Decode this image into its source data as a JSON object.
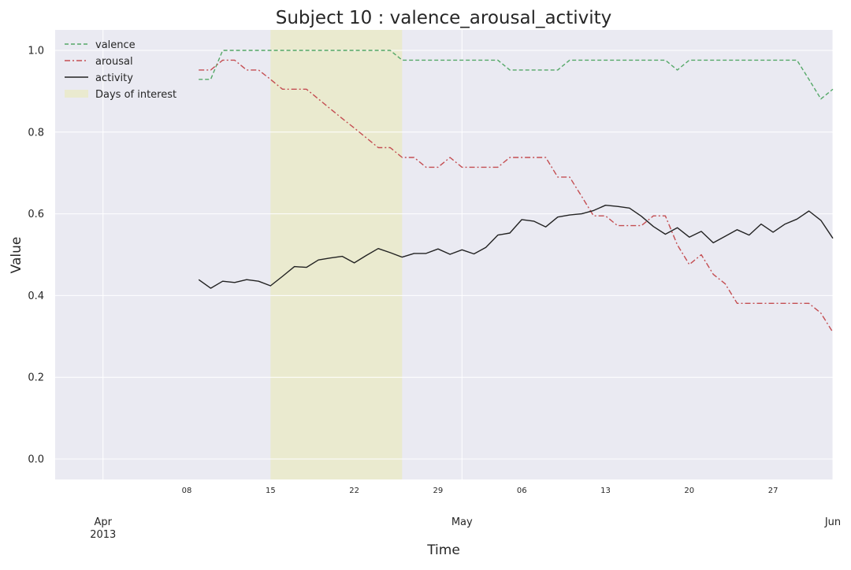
{
  "chart_data": {
    "type": "line",
    "title": "Subject 10 : valence_arousal_activity",
    "xlabel": "Time",
    "ylabel": "Value",
    "x_range": [
      "2013-03-28",
      "2013-06-01"
    ],
    "ylim": [
      -0.05,
      1.05
    ],
    "grid": true,
    "legend_position": "top-left",
    "y_ticks": [
      0.0,
      0.2,
      0.4,
      0.6,
      0.8,
      1.0
    ],
    "y_tick_labels": [
      "0.0",
      "0.2",
      "0.4",
      "0.6",
      "0.8",
      "1.0"
    ],
    "major_x_ticks": [
      {
        "date": "2013-04-01",
        "label": "Apr",
        "sublabel": "2013"
      },
      {
        "date": "2013-05-01",
        "label": "May",
        "sublabel": ""
      },
      {
        "date": "2013-06-01",
        "label": "Jun",
        "sublabel": ""
      }
    ],
    "minor_x_ticks": [
      {
        "date": "2013-04-08",
        "label": "08"
      },
      {
        "date": "2013-04-15",
        "label": "15"
      },
      {
        "date": "2013-04-22",
        "label": "22"
      },
      {
        "date": "2013-04-29",
        "label": "29"
      },
      {
        "date": "2013-05-06",
        "label": "06"
      },
      {
        "date": "2013-05-13",
        "label": "13"
      },
      {
        "date": "2013-05-20",
        "label": "20"
      },
      {
        "date": "2013-05-27",
        "label": "27"
      }
    ],
    "highlight": {
      "label": "Days of interest",
      "start": "2013-04-15",
      "end": "2013-04-26",
      "color": "#eaeacf"
    },
    "dates": [
      "2013-04-09",
      "2013-04-10",
      "2013-04-11",
      "2013-04-12",
      "2013-04-13",
      "2013-04-14",
      "2013-04-15",
      "2013-04-16",
      "2013-04-17",
      "2013-04-18",
      "2013-04-19",
      "2013-04-20",
      "2013-04-21",
      "2013-04-22",
      "2013-04-23",
      "2013-04-24",
      "2013-04-25",
      "2013-04-26",
      "2013-04-27",
      "2013-04-28",
      "2013-04-29",
      "2013-04-30",
      "2013-05-01",
      "2013-05-02",
      "2013-05-03",
      "2013-05-04",
      "2013-05-05",
      "2013-05-06",
      "2013-05-07",
      "2013-05-08",
      "2013-05-09",
      "2013-05-10",
      "2013-05-11",
      "2013-05-12",
      "2013-05-13",
      "2013-05-14",
      "2013-05-15",
      "2013-05-16",
      "2013-05-17",
      "2013-05-18",
      "2013-05-19",
      "2013-05-20",
      "2013-05-21",
      "2013-05-22",
      "2013-05-23",
      "2013-05-24",
      "2013-05-25",
      "2013-05-26",
      "2013-05-27",
      "2013-05-28",
      "2013-05-29",
      "2013-05-30",
      "2013-05-31",
      "2013-06-01"
    ],
    "series": [
      {
        "name": "valence",
        "color": "#55a868",
        "dash": "5,3",
        "values": [
          0.929,
          0.929,
          1.0,
          1.0,
          1.0,
          1.0,
          1.0,
          1.0,
          1.0,
          1.0,
          1.0,
          1.0,
          1.0,
          1.0,
          1.0,
          1.0,
          1.0,
          0.976,
          0.976,
          0.976,
          0.976,
          0.976,
          0.976,
          0.976,
          0.976,
          0.976,
          0.952,
          0.952,
          0.952,
          0.952,
          0.952,
          0.976,
          0.976,
          0.976,
          0.976,
          0.976,
          0.976,
          0.976,
          0.976,
          0.976,
          0.952,
          0.976,
          0.976,
          0.976,
          0.976,
          0.976,
          0.976,
          0.976,
          0.976,
          0.976,
          0.976,
          0.929,
          0.881,
          0.905
        ]
      },
      {
        "name": "arousal",
        "color": "#c44e52",
        "dash": "7,3,2,3",
        "values": [
          0.952,
          0.952,
          0.976,
          0.976,
          0.952,
          0.952,
          0.929,
          0.905,
          0.905,
          0.905,
          0.881,
          0.857,
          0.833,
          0.81,
          0.786,
          0.762,
          0.762,
          0.738,
          0.738,
          0.714,
          0.714,
          0.738,
          0.714,
          0.714,
          0.714,
          0.714,
          0.738,
          0.738,
          0.738,
          0.738,
          0.69,
          0.69,
          0.643,
          0.595,
          0.595,
          0.571,
          0.571,
          0.571,
          0.595,
          0.595,
          0.524,
          0.476,
          0.5,
          0.452,
          0.429,
          0.381,
          0.381,
          0.381,
          0.381,
          0.381,
          0.381,
          0.381,
          0.357,
          0.31
        ]
      },
      {
        "name": "activity",
        "color": "#222222",
        "dash": "",
        "values": [
          0.439,
          0.418,
          0.435,
          0.432,
          0.439,
          0.435,
          0.424,
          0.447,
          0.471,
          0.469,
          0.487,
          0.492,
          0.496,
          0.48,
          0.498,
          0.515,
          0.505,
          0.494,
          0.503,
          0.503,
          0.514,
          0.501,
          0.512,
          0.502,
          0.518,
          0.548,
          0.553,
          0.586,
          0.582,
          0.568,
          0.592,
          0.597,
          0.6,
          0.608,
          0.621,
          0.618,
          0.614,
          0.594,
          0.569,
          0.55,
          0.566,
          0.543,
          0.557,
          0.529,
          0.545,
          0.561,
          0.548,
          0.575,
          0.555,
          0.575,
          0.587,
          0.607,
          0.584,
          0.54
        ]
      }
    ]
  }
}
